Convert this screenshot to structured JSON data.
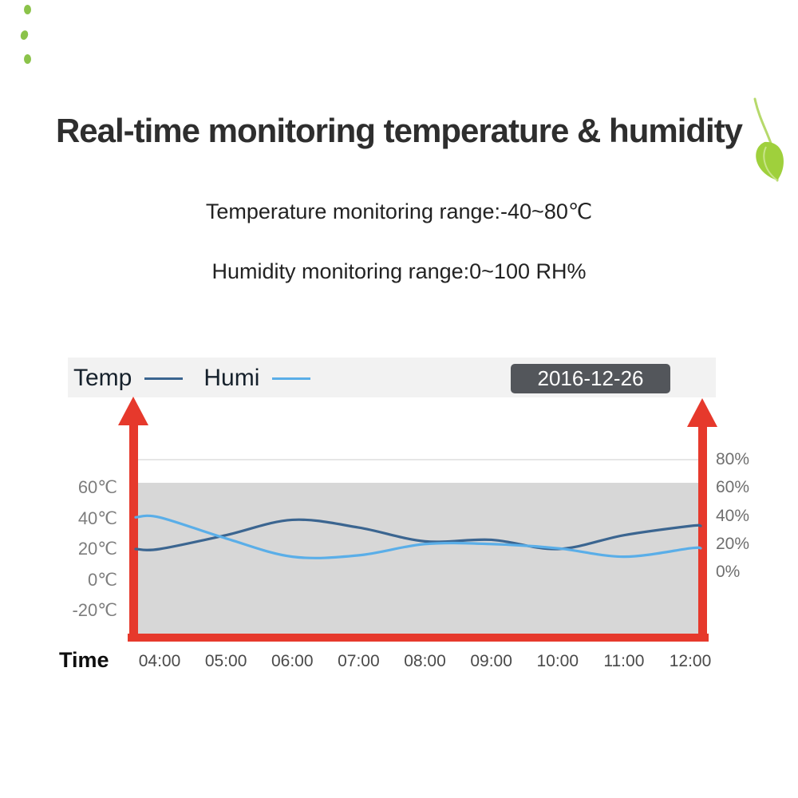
{
  "header": {
    "title": "Real-time monitoring temperature & humidity",
    "temp_range": "Temperature monitoring range:-40~80℃",
    "humi_range": "Humidity monitoring range:0~100 RH%"
  },
  "chart": {
    "date_badge": "2016-12-26"
  },
  "chart_data": {
    "type": "line",
    "title": "Real-time temperature and humidity monitoring",
    "categories": [
      "04:00",
      "05:00",
      "06:00",
      "07:00",
      "08:00",
      "09:00",
      "10:00",
      "11:00",
      "12:00"
    ],
    "series": [
      {
        "name": "Temp",
        "axis": "left",
        "unit": "℃",
        "color": "#3b6590",
        "values": [
          20,
          29,
          39,
          34,
          25,
          26,
          20,
          29,
          35
        ]
      },
      {
        "name": "Humi",
        "axis": "right",
        "unit": "%",
        "color": "#5aaee8",
        "values": [
          39,
          24,
          11,
          12,
          20,
          20,
          17,
          11,
          17
        ]
      }
    ],
    "left_axis": {
      "label": "Temperature",
      "unit": "℃",
      "ticks": [
        60,
        40,
        20,
        0,
        -20
      ],
      "range": [
        -20,
        60
      ]
    },
    "right_axis": {
      "label": "Humidity",
      "unit": "%",
      "ticks": [
        80,
        60,
        40,
        20,
        0
      ],
      "range": [
        0,
        80
      ]
    },
    "x_axis": {
      "title": "Time"
    },
    "legend_position": "top-left",
    "grid": false
  }
}
